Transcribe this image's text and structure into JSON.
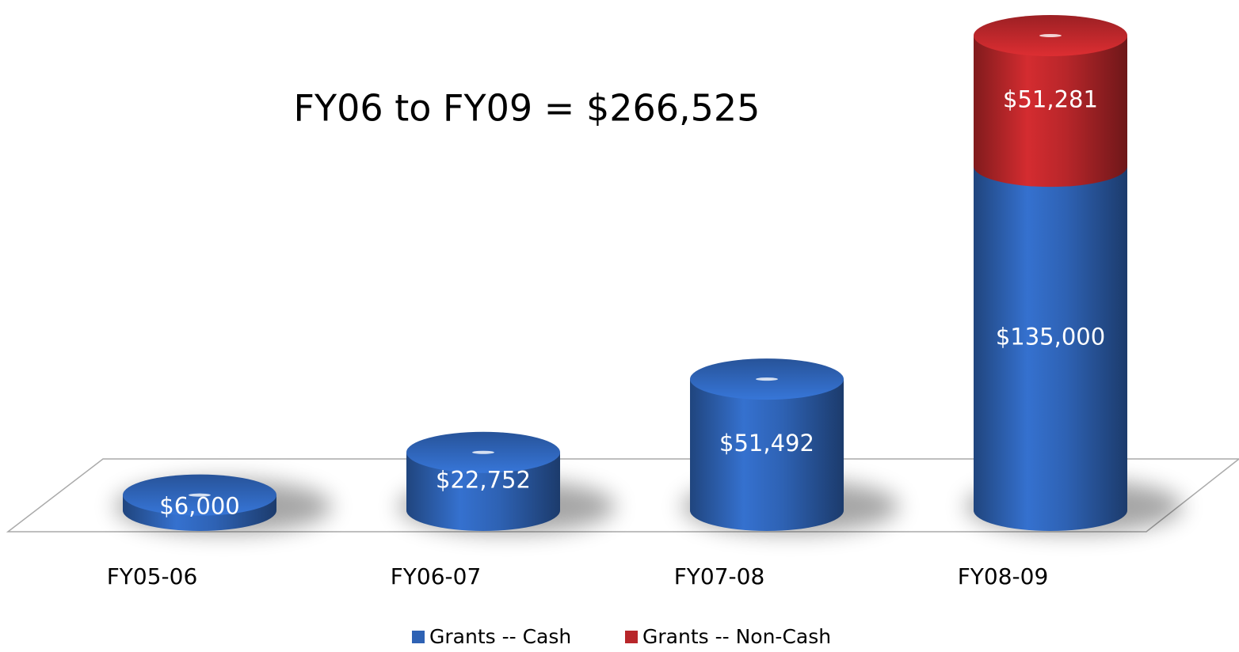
{
  "chart_data": {
    "type": "bar",
    "stacked": true,
    "annotation": "FY06 to FY09 = $266,525",
    "categories": [
      "FY05-06",
      "FY06-07",
      "FY07-08",
      "FY08-09"
    ],
    "series": [
      {
        "name": "Grants -- Cash",
        "color": "#2e62b4",
        "values": [
          6000,
          22752,
          51492,
          135000
        ],
        "value_labels": [
          "$6,000",
          "$22,752",
          "$51,492",
          "$135,000"
        ]
      },
      {
        "name": "Grants -- Non-Cash",
        "color": "#b8262a",
        "values": [
          null,
          null,
          null,
          51281
        ],
        "value_labels": [
          null,
          null,
          null,
          "$51,281"
        ]
      }
    ]
  }
}
